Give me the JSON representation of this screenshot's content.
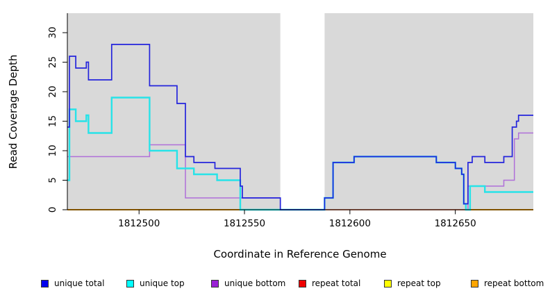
{
  "chart_data": {
    "type": "line",
    "subtype": "step-after-coverage-plot",
    "title": "",
    "xlabel": "Coordinate in Reference Genome",
    "ylabel": "Read Coverage Depth",
    "xlim": [
      1812466,
      1812687
    ],
    "ylim": [
      0,
      33.3
    ],
    "x_ticks": [
      1812500,
      1812550,
      1812600,
      1812650
    ],
    "y_ticks": [
      0,
      5,
      10,
      15,
      20,
      25,
      30
    ],
    "grid": false,
    "plot_bg": "#d9d9d9",
    "masked_region": {
      "x0": 1812567,
      "x1": 1812588,
      "color": "#ffffff"
    },
    "legend_position": "bottom",
    "series": [
      {
        "name": "repeat total",
        "color": "#ee0000",
        "width": 1.2,
        "points": [
          [
            1812466,
            0
          ],
          [
            1812687,
            0
          ]
        ]
      },
      {
        "name": "repeat top",
        "color": "#ffff00",
        "width": 1.2,
        "points": [
          [
            1812466,
            0
          ],
          [
            1812687,
            0
          ]
        ]
      },
      {
        "name": "repeat bottom",
        "color": "#ffa500",
        "width": 2,
        "points": [
          [
            1812466,
            0
          ],
          [
            1812687,
            0
          ]
        ]
      },
      {
        "name": "unique bottom",
        "color": "#b06fd9",
        "width": 1.5,
        "points": [
          [
            1812466,
            9
          ],
          [
            1812505,
            11
          ],
          [
            1812522,
            2
          ],
          [
            1812567,
            0
          ],
          [
            1812656,
            4
          ],
          [
            1812673,
            5
          ],
          [
            1812678,
            12
          ],
          [
            1812680,
            13
          ],
          [
            1812687,
            13
          ]
        ]
      },
      {
        "name": "unique top",
        "color": "#27e3e8",
        "width": 2.4,
        "points": [
          [
            1812466,
            5
          ],
          [
            1812467,
            17
          ],
          [
            1812470,
            15
          ],
          [
            1812475,
            16
          ],
          [
            1812476,
            13
          ],
          [
            1812487,
            19
          ],
          [
            1812505,
            10
          ],
          [
            1812518,
            7
          ],
          [
            1812526,
            6
          ],
          [
            1812537,
            5
          ],
          [
            1812548,
            0
          ],
          [
            1812588,
            2
          ],
          [
            1812592,
            8
          ],
          [
            1812602,
            9
          ],
          [
            1812641,
            8
          ],
          [
            1812650,
            7
          ],
          [
            1812653,
            6
          ],
          [
            1812654,
            1
          ],
          [
            1812655,
            0
          ],
          [
            1812657,
            4
          ],
          [
            1812664,
            3
          ],
          [
            1812687,
            3
          ]
        ]
      },
      {
        "name": "unique total",
        "color": "#2424dc",
        "width": 1.7,
        "points": [
          [
            1812466,
            14
          ],
          [
            1812467,
            26
          ],
          [
            1812470,
            24
          ],
          [
            1812475,
            25
          ],
          [
            1812476,
            22
          ],
          [
            1812487,
            28
          ],
          [
            1812505,
            21
          ],
          [
            1812518,
            18
          ],
          [
            1812522,
            9
          ],
          [
            1812526,
            8
          ],
          [
            1812536,
            7
          ],
          [
            1812548,
            4
          ],
          [
            1812549,
            2
          ],
          [
            1812567,
            0
          ],
          [
            1812588,
            2
          ],
          [
            1812592,
            8
          ],
          [
            1812602,
            9
          ],
          [
            1812641,
            8
          ],
          [
            1812650,
            7
          ],
          [
            1812653,
            6
          ],
          [
            1812654,
            1
          ],
          [
            1812656,
            8
          ],
          [
            1812658,
            9
          ],
          [
            1812664,
            8
          ],
          [
            1812673,
            9
          ],
          [
            1812677,
            14
          ],
          [
            1812679,
            15
          ],
          [
            1812680,
            16
          ],
          [
            1812687,
            16
          ]
        ]
      }
    ],
    "legend": [
      {
        "label": "unique total",
        "color": "#0000ee"
      },
      {
        "label": "unique top",
        "color": "#00ffff"
      },
      {
        "label": "unique bottom",
        "color": "#9a20d6"
      },
      {
        "label": "repeat total",
        "color": "#ee0000"
      },
      {
        "label": "repeat top",
        "color": "#ffff00"
      },
      {
        "label": "repeat bottom",
        "color": "#ffa500"
      }
    ]
  }
}
